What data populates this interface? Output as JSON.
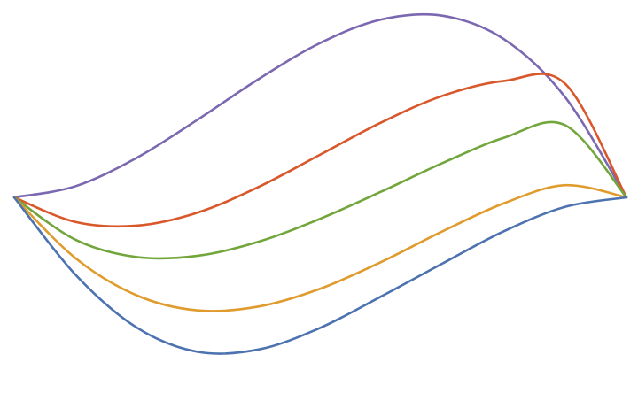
{
  "chart_data": {
    "type": "line",
    "title": "",
    "xlabel": "",
    "ylabel": "",
    "axes_visible": false,
    "grid": false,
    "legend": "none",
    "xlim": [
      0,
      1
    ],
    "ylim": [
      -1.15,
      1.15
    ],
    "series": [
      {
        "color": "#7b68b1",
        "x": [
          0,
          0.1,
          0.2,
          0.3,
          0.4,
          0.5,
          0.6,
          0.7,
          0.8,
          0.9,
          1
        ],
        "y": [
          0,
          0.072,
          0.256,
          0.504,
          0.768,
          1.0,
          1.152,
          1.176,
          1.024,
          0.648,
          0
        ]
      },
      {
        "color": "#d9582b",
        "x": [
          0,
          0.1,
          0.2,
          0.3,
          0.4,
          0.5,
          0.6,
          0.7,
          0.8,
          0.9,
          1
        ],
        "y": [
          0,
          -0.159,
          -0.183,
          -0.098,
          0.069,
          0.277,
          0.486,
          0.658,
          0.754,
          0.735,
          0
        ]
      },
      {
        "color": "#72a63c",
        "x": [
          0,
          0.1,
          0.2,
          0.3,
          0.4,
          0.5,
          0.6,
          0.7,
          0.8,
          0.9,
          1
        ],
        "y": [
          0,
          -0.274,
          -0.386,
          -0.378,
          -0.286,
          -0.138,
          0.038,
          0.223,
          0.386,
          0.467,
          0
        ]
      },
      {
        "color": "#e09b2d",
        "x": [
          0,
          0.1,
          0.2,
          0.3,
          0.4,
          0.5,
          0.6,
          0.7,
          0.8,
          0.9,
          1
        ],
        "y": [
          0,
          -0.393,
          -0.634,
          -0.732,
          -0.706,
          -0.591,
          -0.417,
          -0.219,
          -0.038,
          0.079,
          0
        ]
      },
      {
        "color": "#4c72b0",
        "x": [
          0,
          0.1,
          0.2,
          0.3,
          0.4,
          0.5,
          0.6,
          0.7,
          0.8,
          0.9,
          1
        ],
        "y": [
          0,
          -0.5,
          -0.842,
          -1.0,
          -0.984,
          -0.844,
          -0.64,
          -0.427,
          -0.219,
          -0.061,
          0
        ]
      }
    ]
  }
}
